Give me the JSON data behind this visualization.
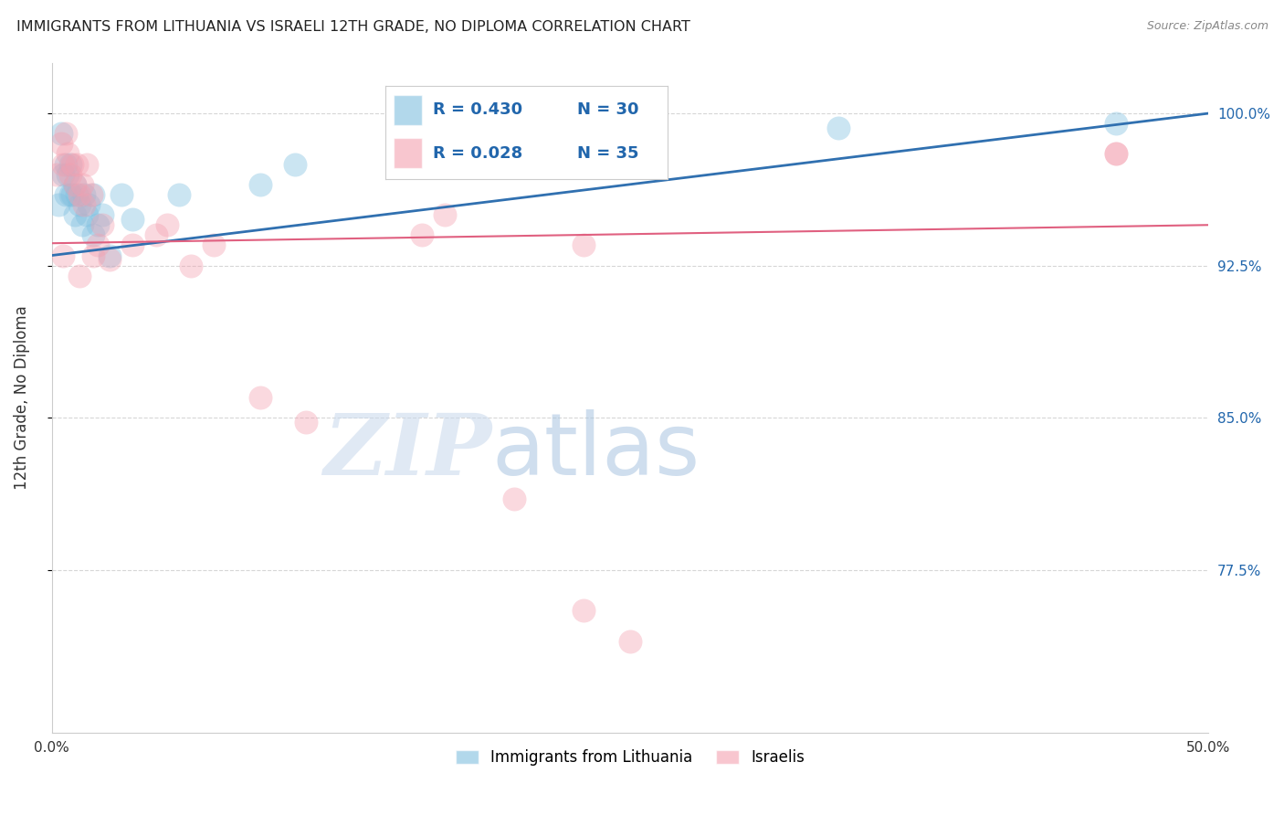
{
  "title": "IMMIGRANTS FROM LITHUANIA VS ISRAELI 12TH GRADE, NO DIPLOMA CORRELATION CHART",
  "source": "Source: ZipAtlas.com",
  "ylabel_left": "12th Grade, No Diploma",
  "xlabel_legend1": "Immigrants from Lithuania",
  "xlabel_legend2": "Israelis",
  "xmin": 0.0,
  "xmax": 0.5,
  "ymin": 0.695,
  "ymax": 1.025,
  "yticks": [
    0.775,
    0.85,
    0.925,
    1.0
  ],
  "ytick_labels": [
    "77.5%",
    "85.0%",
    "92.5%",
    "100.0%"
  ],
  "legend_r1": "R = 0.430",
  "legend_n1": "N = 30",
  "legend_r2": "R = 0.028",
  "legend_n2": "N = 35",
  "blue_color": "#7fbfdf",
  "pink_color": "#f4a0b0",
  "blue_line_color": "#3070b0",
  "pink_line_color": "#e06080",
  "blue_x": [
    0.003,
    0.004,
    0.005,
    0.006,
    0.006,
    0.007,
    0.008,
    0.008,
    0.009,
    0.01,
    0.01,
    0.011,
    0.012,
    0.013,
    0.014,
    0.015,
    0.016,
    0.018,
    0.018,
    0.02,
    0.022,
    0.025,
    0.03,
    0.035,
    0.055,
    0.09,
    0.105,
    0.2,
    0.34,
    0.46
  ],
  "blue_y": [
    0.955,
    0.99,
    0.97,
    0.975,
    0.96,
    0.97,
    0.975,
    0.96,
    0.96,
    0.965,
    0.95,
    0.96,
    0.955,
    0.945,
    0.96,
    0.95,
    0.955,
    0.94,
    0.96,
    0.945,
    0.95,
    0.93,
    0.96,
    0.948,
    0.96,
    0.965,
    0.975,
    0.99,
    0.993,
    0.995
  ],
  "pink_x": [
    0.002,
    0.004,
    0.005,
    0.006,
    0.007,
    0.008,
    0.009,
    0.01,
    0.011,
    0.012,
    0.013,
    0.014,
    0.015,
    0.017,
    0.018,
    0.02,
    0.022,
    0.025,
    0.035,
    0.045,
    0.05,
    0.06,
    0.07,
    0.09,
    0.11,
    0.16,
    0.2,
    0.23,
    0.23,
    0.46,
    0.46,
    0.005,
    0.012,
    0.17,
    0.25
  ],
  "pink_y": [
    0.97,
    0.985,
    0.975,
    0.99,
    0.98,
    0.97,
    0.975,
    0.965,
    0.975,
    0.96,
    0.965,
    0.955,
    0.975,
    0.96,
    0.93,
    0.935,
    0.945,
    0.928,
    0.935,
    0.94,
    0.945,
    0.925,
    0.935,
    0.86,
    0.848,
    0.94,
    0.81,
    0.755,
    0.935,
    0.98,
    0.98,
    0.93,
    0.92,
    0.95,
    0.74
  ],
  "dot_size": 350
}
